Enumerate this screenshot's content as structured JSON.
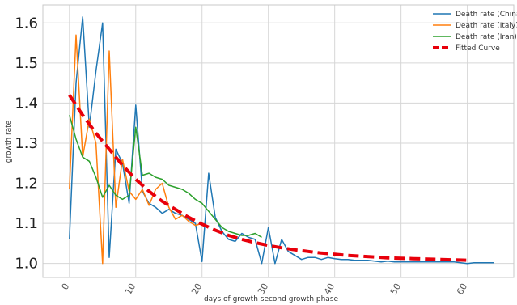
{
  "chart_data": {
    "type": "line",
    "xlabel": "days of growth second growth phase",
    "ylabel": "growth rate",
    "xlim": [
      -4,
      67
    ],
    "ylim": [
      0.965,
      1.645
    ],
    "x_ticks": [
      0,
      10,
      20,
      30,
      40,
      50,
      60
    ],
    "y_ticks": [
      1.0,
      1.1,
      1.2,
      1.3,
      1.4,
      1.5,
      1.6
    ],
    "grid": true,
    "legend_position": "top-right",
    "series": [
      {
        "name": "Death rate (China)",
        "color": "#1f77b4",
        "style": "solid",
        "x": [
          0,
          1,
          2,
          3,
          4,
          5,
          6,
          7,
          8,
          9,
          10,
          11,
          12,
          13,
          14,
          15,
          16,
          17,
          18,
          19,
          20,
          21,
          22,
          23,
          24,
          25,
          26,
          27,
          28,
          29,
          30,
          31,
          32,
          33,
          34,
          35,
          36,
          37,
          38,
          39,
          40,
          41,
          42,
          43,
          44,
          45,
          46,
          47,
          48,
          49,
          50,
          51,
          52,
          53,
          54,
          55,
          56,
          57,
          58,
          59,
          60,
          61,
          62,
          63,
          64
        ],
        "y": [
          1.06,
          1.45,
          1.615,
          1.34,
          1.48,
          1.6,
          1.015,
          1.285,
          1.25,
          1.15,
          1.395,
          1.18,
          1.15,
          1.14,
          1.125,
          1.135,
          1.125,
          1.12,
          1.11,
          1.1,
          1.005,
          1.225,
          1.115,
          1.08,
          1.06,
          1.055,
          1.075,
          1.065,
          1.06,
          1.0,
          1.09,
          1.0,
          1.06,
          1.03,
          1.02,
          1.01,
          1.015,
          1.015,
          1.01,
          1.015,
          1.012,
          1.01,
          1.01,
          1.008,
          1.008,
          1.008,
          1.006,
          1.004,
          1.006,
          1.004,
          1.004,
          1.004,
          1.004,
          1.004,
          1.004,
          1.004,
          1.004,
          1.004,
          1.004,
          1.002,
          1.0,
          1.002,
          1.002,
          1.002,
          1.002
        ]
      },
      {
        "name": "Death rate (Italy)",
        "color": "#ff7f0e",
        "style": "solid",
        "x": [
          0,
          1,
          2,
          3,
          4,
          5,
          6,
          7,
          8,
          9,
          10,
          11,
          12,
          13,
          14,
          15,
          16,
          17,
          18,
          19,
          20
        ],
        "y": [
          1.185,
          1.57,
          1.265,
          1.36,
          1.3,
          1.0,
          1.53,
          1.14,
          1.26,
          1.18,
          1.16,
          1.185,
          1.145,
          1.185,
          1.2,
          1.14,
          1.11,
          1.12,
          1.105,
          1.095,
          1.1
        ]
      },
      {
        "name": "Death rate (Iran)",
        "color": "#2ca02c",
        "style": "solid",
        "x": [
          0,
          1,
          2,
          3,
          4,
          5,
          6,
          7,
          8,
          9,
          10,
          11,
          12,
          13,
          14,
          15,
          16,
          17,
          18,
          19,
          20,
          21,
          22,
          23,
          24,
          25,
          26,
          27,
          28,
          29
        ],
        "y": [
          1.37,
          1.31,
          1.265,
          1.255,
          1.215,
          1.165,
          1.195,
          1.17,
          1.16,
          1.17,
          1.34,
          1.22,
          1.225,
          1.215,
          1.21,
          1.195,
          1.19,
          1.185,
          1.175,
          1.16,
          1.15,
          1.13,
          1.11,
          1.09,
          1.08,
          1.075,
          1.07,
          1.07,
          1.075,
          1.065
        ]
      },
      {
        "name": "Fitted Curve",
        "color": "#e8000b",
        "style": "dashed",
        "x": [
          0,
          2,
          4,
          6,
          8,
          10,
          12,
          14,
          16,
          18,
          20,
          22,
          24,
          26,
          28,
          30,
          32,
          34,
          36,
          38,
          40,
          42,
          44,
          46,
          48,
          50,
          52,
          54,
          56,
          58,
          60
        ],
        "y": [
          1.42,
          1.37,
          1.325,
          1.285,
          1.245,
          1.21,
          1.18,
          1.155,
          1.135,
          1.115,
          1.098,
          1.083,
          1.07,
          1.06,
          1.052,
          1.045,
          1.039,
          1.034,
          1.03,
          1.026,
          1.023,
          1.02,
          1.018,
          1.016,
          1.014,
          1.013,
          1.012,
          1.011,
          1.01,
          1.009,
          1.008
        ]
      }
    ]
  }
}
